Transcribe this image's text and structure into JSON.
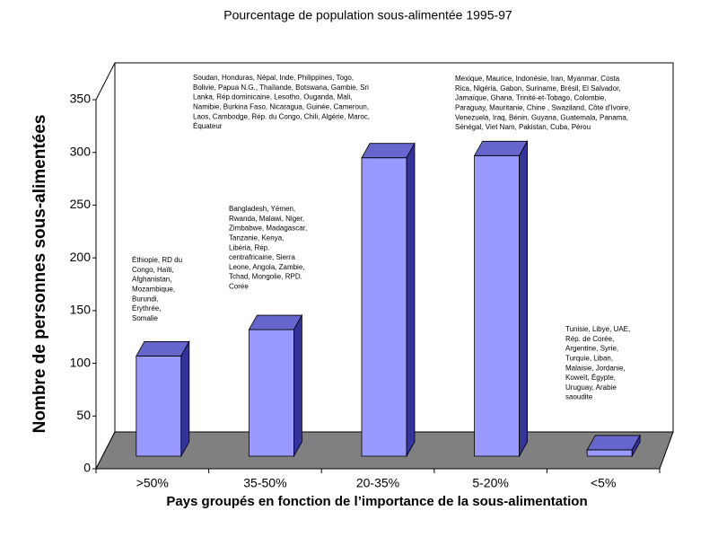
{
  "chart_data": {
    "type": "bar3d",
    "title": "Pourcentage de population sous-alimentée 1995-97",
    "x_label": "Pays groupés en fonction de l’importance de la sous-alimentation",
    "y_label": "Nombre de personnes sous-alimentées",
    "categories": [
      ">50%",
      "35-50%",
      "20-35%",
      "5-20%",
      "<5%"
    ],
    "values": [
      95,
      120,
      283,
      285,
      6
    ],
    "color": "#9999ff",
    "ylim": [
      0,
      350
    ],
    "yticks": [
      0,
      50,
      100,
      150,
      200,
      250,
      300,
      350
    ],
    "grid": false,
    "annotations": [
      [
        "Éthiopie, RD du",
        "Congo, Haïti,",
        "Afghanistan,",
        "Mozambique,",
        "Burundi,",
        "Érythrée,",
        "Somalie"
      ],
      [
        "Bangladesh, Yémen,",
        "Rwanda, Malawi, Niger,",
        "Zimbabwe, Madagascar,",
        "Tanzanie, Kenya,",
        "Libéria, Rép.",
        "centrafricaine, Sierra",
        "Leone, Angola, Zambie,",
        "Tchad, Mongolie, RPD.",
        "Corée"
      ],
      [
        "Soudan, Honduras, Népal, Inde, Philippines, Togo,",
        "Bolivie, Papua N.G., Thaïlande, Botswana, Gambie, Sri",
        "Lanka, Rép.dominicaine, Lesotho, Ouganda, Mali,",
        "Namibie, Burkina Faso, Nicaragua, Guinée, Cameroun,",
        "Laos, Cambodge, Rép. du Congo, Chili, Algérie, Maroc,",
        "Équateur"
      ],
      [
        "Mexique, Maurice, Indonésie,  Iran, Myanmar, Costa",
        "Rica, Nigéria, Gabon, Suriname, Brésil, El Salvador,",
        "Jamaïque, Ghana, Trinité-et-Tobago,  Colombie,",
        "Paraguay, Mauritanie, Chine , Swaziland, Côte d'Ivoire,",
        "Venezuela, Iraq, Bénin, Guyana, Guatemala, Panama,",
        "Sénégal,  Viet Nam, Pakistan, Cuba, Pérou"
      ],
      [
        "Tunisie, Libye, UAE,",
        "Rép. de Corée,",
        "Argentine, Syrie,",
        "Turquie, Liban,",
        "Malaisie, Jordanie,",
        "Koweït, Égypte,",
        "Uruguay, Arabie",
        "saoudite"
      ]
    ]
  }
}
